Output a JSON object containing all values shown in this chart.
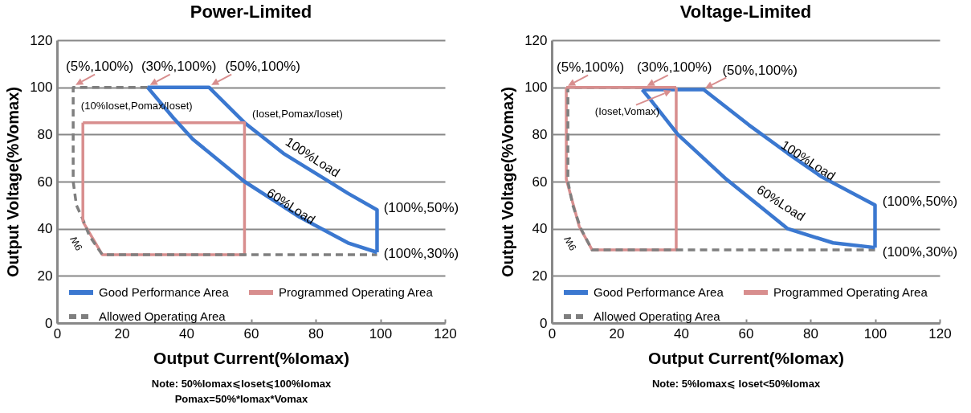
{
  "chart_data": [
    {
      "type": "line",
      "title": "Power-Limited",
      "xlabel": "Output Current(%Iomax)",
      "ylabel": "Output Voltage(%Vomax)",
      "xlim": [
        0,
        120
      ],
      "xticks": [
        0,
        20,
        40,
        60,
        80,
        100,
        120
      ],
      "ylim": [
        0,
        120
      ],
      "yticks": [
        0,
        20,
        40,
        60,
        80,
        100,
        120
      ],
      "grid": "y",
      "legend": "bottom",
      "series": [
        {
          "name": "Good Performance Area",
          "color": "#3b78d0",
          "line_style": "solid",
          "x": [
            28,
            47,
            58,
            70,
            83,
            90,
            99,
            99
          ],
          "values": [
            100,
            100,
            85,
            72,
            61,
            55,
            48,
            30
          ]
        },
        {
          "name": "Programmed Operating Area",
          "color": "#d88e8e",
          "line_style": "solid",
          "x": [
            8,
            58,
            58,
            14,
            8
          ],
          "values": [
            85,
            85,
            29,
            29,
            43
          ]
        },
        {
          "name": "Allowed Operating Area",
          "color": "#7f7f7f",
          "line_style": "dashed",
          "x": [
            28,
            5,
            5,
            6,
            8,
            10,
            14,
            99
          ],
          "values": [
            100,
            100,
            60,
            50,
            44,
            37,
            29,
            29
          ]
        },
        {
          "color": "#3b78d0",
          "line_style": "solid",
          "x": [
            28,
            36,
            42,
            58,
            75,
            90,
            99
          ],
          "values": [
            100,
            87,
            78,
            60,
            45,
            34,
            30
          ]
        },
        {
          "color": "#d88e8e",
          "line_style": "solid",
          "x": [
            8,
            8
          ],
          "values": [
            43,
            85
          ]
        }
      ],
      "annotations": [
        {
          "text": "(5%,100%)",
          "x": 5,
          "y": 100
        },
        {
          "text": "(30%,100%)",
          "x": 28,
          "y": 100
        },
        {
          "text": "(50%,100%)",
          "x": 47,
          "y": 100
        },
        {
          "text": "(10%Ioset,Pomax/Ioset)",
          "x": 8,
          "y": 85
        },
        {
          "text": "(Ioset,Pomax/Ioset)",
          "x": 58,
          "y": 85
        },
        {
          "text": "(100%,50%)",
          "x": 99,
          "y": 48
        },
        {
          "text": "(100%,30%)",
          "x": 99,
          "y": 30
        },
        "100%Load",
        "60%Load",
        "9W",
        "Note:  50%Iomax⩽Ioset⩽100%Iomax",
        "Pomax=50%*Iomax*Vomax"
      ]
    },
    {
      "type": "line",
      "title": "Voltage-Limited",
      "xlabel": "Output Current(%Iomax)",
      "ylabel": "Output Voltage(%Vomax)",
      "xlim": [
        0,
        120
      ],
      "xticks": [
        0,
        20,
        40,
        60,
        80,
        100,
        120
      ],
      "ylim": [
        0,
        120
      ],
      "yticks": [
        0,
        20,
        40,
        60,
        80,
        100,
        120
      ],
      "grid": "y",
      "legend": "bottom",
      "series": [
        {
          "name": "Good Performance Area",
          "color": "#3b78d0",
          "line_style": "solid",
          "x": [
            28,
            47,
            61,
            73,
            83.5,
            100,
            100
          ],
          "values": [
            99,
            99,
            84,
            72,
            62,
            50,
            32
          ]
        },
        {
          "name": "Programmed Operating Area",
          "color": "#d88e8e",
          "line_style": "solid",
          "x": [
            38.5,
            38.5,
            12.5,
            8.5,
            4.5,
            4.5
          ],
          "values": [
            100,
            31,
            31,
            41,
            61,
            100
          ]
        },
        {
          "name": "Allowed Operating Area",
          "color": "#7f7f7f",
          "line_style": "dashed",
          "x": [
            28,
            5,
            5,
            6.5,
            9,
            12.5,
            100
          ],
          "values": [
            100,
            100,
            60,
            50,
            40,
            31,
            31
          ]
        },
        {
          "color": "#3b78d0",
          "line_style": "solid",
          "x": [
            28,
            31,
            39,
            54,
            73,
            87,
            100
          ],
          "values": [
            99,
            94,
            80,
            61,
            40,
            34,
            32
          ]
        },
        {
          "color": "#d88e8e",
          "line_style": "solid",
          "x": [
            4.5,
            38.5
          ],
          "values": [
            100,
            100
          ]
        }
      ],
      "annotations": [
        {
          "text": "(5%,100%)",
          "x": 4.5,
          "y": 100
        },
        {
          "text": "(30%,100%)",
          "x": 29,
          "y": 100
        },
        {
          "text": "(50%,100%)",
          "x": 47,
          "y": 99
        },
        {
          "text": "(Ioset,Vomax)",
          "x": 38.5,
          "y": 100
        },
        {
          "text": "(100%,50%)",
          "x": 100,
          "y": 50
        },
        {
          "text": "(100%,30%)",
          "x": 100,
          "y": 32
        },
        "100%Load",
        "60%Load",
        "9W",
        "Note: 5%Iomax⩽ Ioset<50%Iomax"
      ]
    }
  ]
}
